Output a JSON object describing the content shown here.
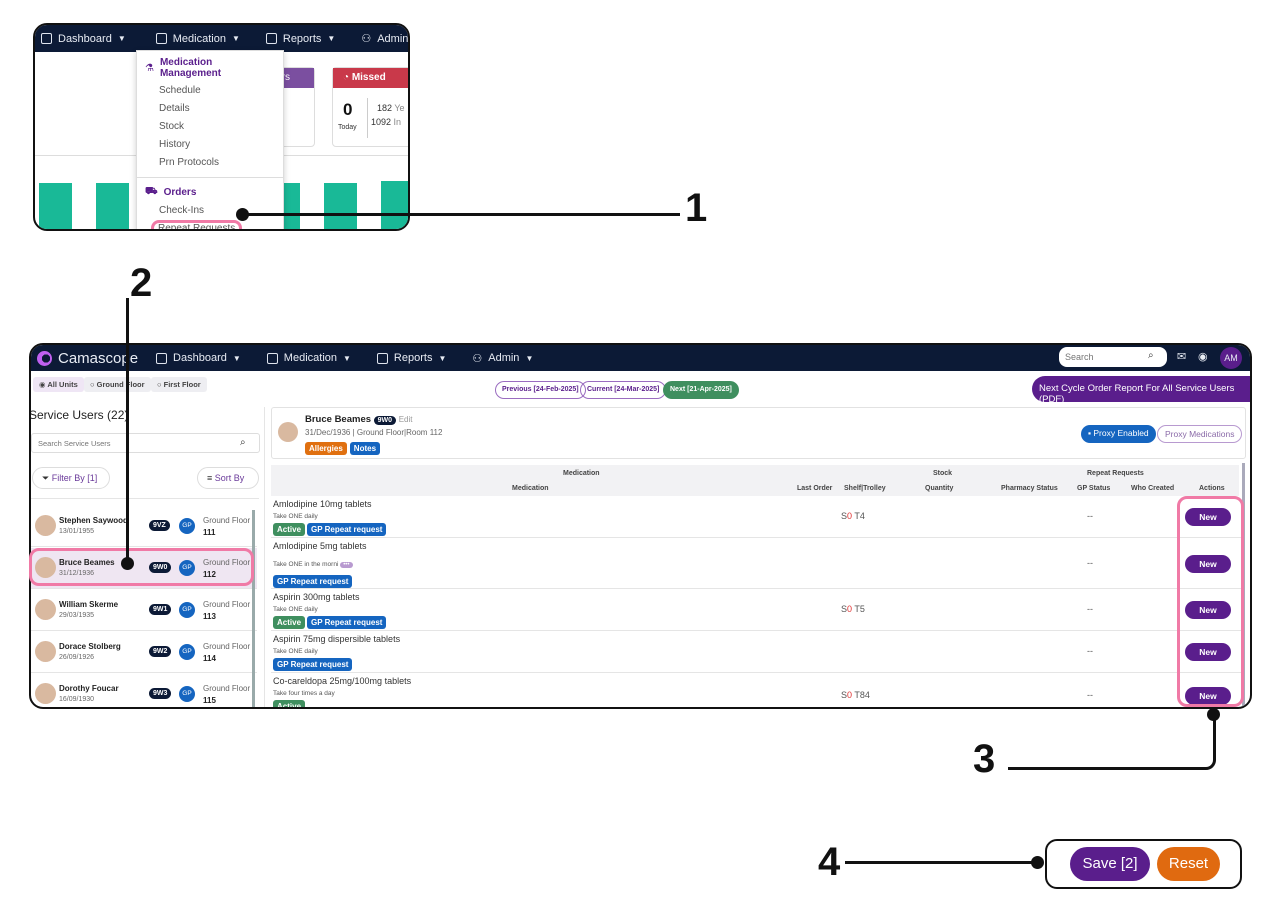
{
  "step1": {
    "nav": [
      "Dashboard",
      "Medication",
      "Reports",
      "Admin"
    ],
    "cards": {
      "purple_label": "rs",
      "missed_label": "Missed",
      "today_value": "0",
      "today_label": "Today",
      "yesterday_count": "182",
      "yesterday_label": "Ye",
      "in_count": "1092",
      "in_label": "In",
      "partial_text": "t"
    },
    "menu": {
      "management_header": "Medication Management",
      "management_items": [
        "Schedule",
        "Details",
        "Stock",
        "History",
        "Prn Protocols"
      ],
      "orders_header": "Orders",
      "orders_items": [
        "Check-Ins",
        "Repeat Requests"
      ]
    },
    "chart_color": "#19b997"
  },
  "callouts": [
    "1",
    "2",
    "3",
    "4"
  ],
  "app": {
    "logo": "Camascope",
    "nav": [
      "Dashboard",
      "Medication",
      "Reports",
      "Admin"
    ],
    "search_placeholder": "Search",
    "avatar": "AM",
    "units": [
      "All Units",
      "Ground Floor",
      "First Floor"
    ],
    "cycles": {
      "previous": "Previous [24-Feb-2025]",
      "current": "Current [24-Mar-2025]",
      "next": "Next [21-Apr-2025]"
    },
    "report_button": "Next Cycle Order Report For All Service Users (PDF)",
    "sidebar": {
      "title": "Service Users (22)",
      "search_placeholder": "Search Service Users",
      "filter": "Filter By [1]",
      "sort": "Sort By",
      "users": [
        {
          "name": "Stephen Saywood",
          "dob": "13/01/1955",
          "code": "9VZ",
          "gp": "GP",
          "floor": "Ground Floor",
          "room": "111"
        },
        {
          "name": "Bruce Beames",
          "dob": "31/12/1936",
          "code": "9W0",
          "gp": "GP",
          "floor": "Ground Floor",
          "room": "112",
          "selected": true
        },
        {
          "name": "William Skerme",
          "dob": "29/03/1935",
          "code": "9W1",
          "gp": "GP",
          "floor": "Ground Floor",
          "room": "113"
        },
        {
          "name": "Dorace Stolberg",
          "dob": "26/09/1926",
          "code": "9W2",
          "gp": "GP",
          "floor": "Ground Floor",
          "room": "114"
        },
        {
          "name": "Dorothy Foucar",
          "dob": "16/09/1930",
          "code": "9W3",
          "gp": "GP",
          "floor": "Ground Floor",
          "room": "115"
        }
      ]
    },
    "patient": {
      "name": "Bruce Beames",
      "code": "9W0",
      "edit": "Edit",
      "dob": "31/Dec/1936",
      "floor": "Ground Floor",
      "room": "Room 112",
      "allergies": "Allergies",
      "notes": "Notes",
      "proxy_enabled": "Proxy Enabled",
      "proxy_medications": "Proxy Medications"
    },
    "table": {
      "group_headers": {
        "medication": "Medication",
        "stock": "Stock",
        "repeat": "Repeat Requests"
      },
      "columns": [
        "Medication",
        "Last Order",
        "Shelf|Trolley",
        "Quantity",
        "Pharmacy Status",
        "GP Status",
        "Who Created",
        "Actions"
      ],
      "rows": [
        {
          "name": "Amlodipine 10mg tablets",
          "sig": "Take ONE daily",
          "tags": [
            "Active",
            "GP Repeat request"
          ],
          "shelf_s": "S",
          "shelf_n": "0",
          "trolley": "T4",
          "gp_status": "--",
          "action": "New"
        },
        {
          "name": "Amlodipine 5mg tablets",
          "sig": "Take ONE in the morni",
          "more": "•••",
          "tags": [
            "GP Repeat request"
          ],
          "shelf_s": "",
          "shelf_n": "",
          "trolley": "",
          "gp_status": "--",
          "action": "New"
        },
        {
          "name": "Aspirin 300mg tablets",
          "sig": "Take ONE daily",
          "tags": [
            "Active",
            "GP Repeat request"
          ],
          "shelf_s": "S",
          "shelf_n": "0",
          "trolley": "T5",
          "gp_status": "--",
          "action": "New"
        },
        {
          "name": "Aspirin 75mg dispersible tablets",
          "sig": "Take ONE daily",
          "tags": [
            "GP Repeat request"
          ],
          "shelf_s": "",
          "shelf_n": "",
          "trolley": "",
          "gp_status": "--",
          "action": "New"
        },
        {
          "name": "Co-careldopa 25mg/100mg tablets",
          "sig": "Take four times a day",
          "tags": [
            "Active"
          ],
          "shelf_s": "S",
          "shelf_n": "0",
          "trolley": "T84",
          "gp_status": "--",
          "action": "New"
        }
      ]
    }
  },
  "footer": {
    "save": "Save [2]",
    "reset": "Reset"
  },
  "colors": {
    "nav": "#0c1a36",
    "primary": "#5a1e8c",
    "active": "#3f8f5f",
    "gp_request": "#1565c0",
    "allergies": "#e07010",
    "highlight": "#f07aa6",
    "reset": "#e06a10",
    "missed": "#c9394a"
  }
}
